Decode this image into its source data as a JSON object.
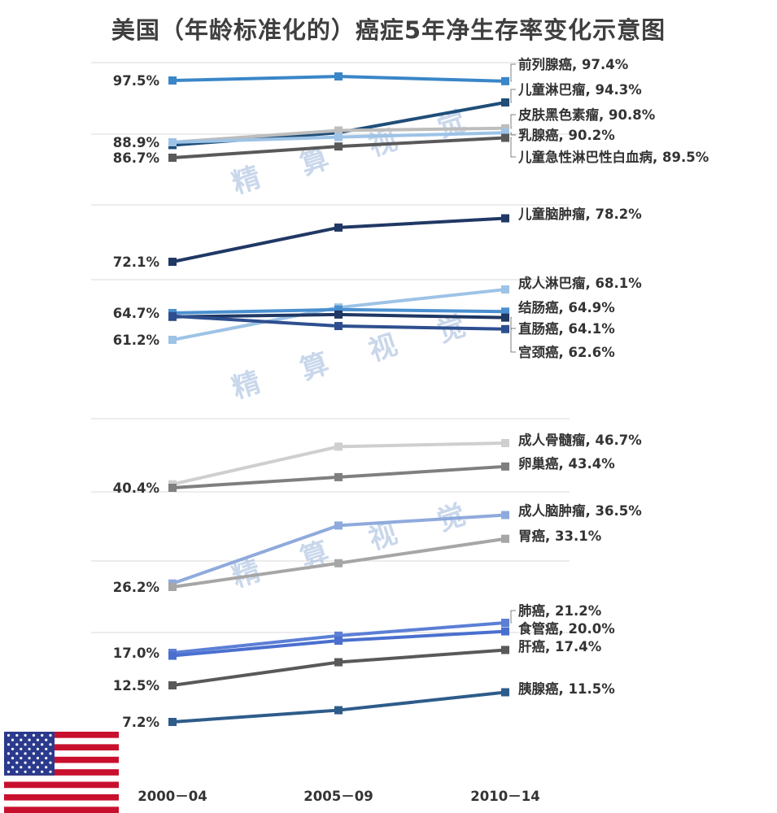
{
  "title": "美国（年龄标准化的）癌症5年净生存率变化示意图",
  "watermark": [
    "精",
    "算",
    "视",
    "觉"
  ],
  "chart_data": {
    "type": "line",
    "title": "美国（年龄标准化的）癌症5年净生存率变化示意图",
    "x": [
      "2000－04",
      "2005－09",
      "2010－14"
    ],
    "y_tick_labels": [
      "97.5%",
      "88.9%",
      "86.7%",
      "72.1%",
      "64.7%",
      "61.2%",
      "40.4%",
      "26.2%",
      "17.0%",
      "12.5%",
      "7.2%"
    ],
    "series": [
      {
        "name": "前列腺癌",
        "label": "前列腺癌, 97.4%",
        "values": [
          97.5,
          98.0,
          97.4
        ],
        "color": "#3a86c8"
      },
      {
        "name": "儿童淋巴瘤",
        "label": "儿童淋巴瘤, 94.3%",
        "values": [
          88.5,
          90.2,
          94.3
        ],
        "color": "#1f4e79"
      },
      {
        "name": "皮肤黑色素瘤",
        "label": "皮肤黑色素瘤, 90.8%",
        "values": [
          88.9,
          90.5,
          90.8
        ],
        "color": "#bdbdbd"
      },
      {
        "name": "乳腺癌",
        "label": "乳腺癌, 90.2%",
        "values": [
          88.9,
          89.6,
          90.2
        ],
        "color": "#9dc3e6"
      },
      {
        "name": "儿童急性淋巴性白血病",
        "label": "儿童急性淋巴性白血病, 89.5%",
        "values": [
          86.7,
          88.3,
          89.5
        ],
        "color": "#595959"
      },
      {
        "name": "儿童脑肿瘤",
        "label": "儿童脑肿瘤, 78.2%",
        "values": [
          72.1,
          76.9,
          78.2
        ],
        "color": "#203864"
      },
      {
        "name": "成人淋巴瘤",
        "label": "成人淋巴瘤, 68.1%",
        "values": [
          61.2,
          65.5,
          68.1
        ],
        "color": "#9dc3e6"
      },
      {
        "name": "结肠癌",
        "label": "结肠癌, 64.9%",
        "values": [
          64.7,
          65.2,
          64.9
        ],
        "color": "#4a90d0"
      },
      {
        "name": "直肠癌",
        "label": "直肠癌, 64.1%",
        "values": [
          64.2,
          64.5,
          64.1
        ],
        "color": "#1f3864"
      },
      {
        "name": "宫颈癌",
        "label": "宫颈癌, 62.6%",
        "values": [
          64.3,
          63.0,
          62.6
        ],
        "color": "#2e4f8f"
      },
      {
        "name": "成人骨髓瘤",
        "label": "成人骨髓瘤, 46.7%",
        "values": [
          40.9,
          46.2,
          46.7
        ],
        "color": "#cfcfcf"
      },
      {
        "name": "卵巢癌",
        "label": "卵巢癌, 43.4%",
        "values": [
          40.4,
          41.9,
          43.4
        ],
        "color": "#7f7f7f"
      },
      {
        "name": "成人脑肿瘤",
        "label": "成人脑肿瘤, 36.5%",
        "values": [
          26.7,
          35.0,
          36.5
        ],
        "color": "#8faadc"
      },
      {
        "name": "胃癌",
        "label": "胃癌, 33.1%",
        "values": [
          26.2,
          29.6,
          33.1
        ],
        "color": "#a6a6a6"
      },
      {
        "name": "肺癌",
        "label": "肺癌, 21.2%",
        "values": [
          17.0,
          19.4,
          21.2
        ],
        "color": "#5b7fd6"
      },
      {
        "name": "食管癌",
        "label": "食管癌, 20.0%",
        "values": [
          16.6,
          18.7,
          20.0
        ],
        "color": "#4a6fcf"
      },
      {
        "name": "肝癌",
        "label": "肝癌, 17.4%",
        "values": [
          12.5,
          15.7,
          17.4
        ],
        "color": "#595959"
      },
      {
        "name": "胰腺癌",
        "label": "胰腺癌, 11.5%",
        "values": [
          7.2,
          8.9,
          11.5
        ],
        "color": "#2e5c8a"
      }
    ]
  }
}
